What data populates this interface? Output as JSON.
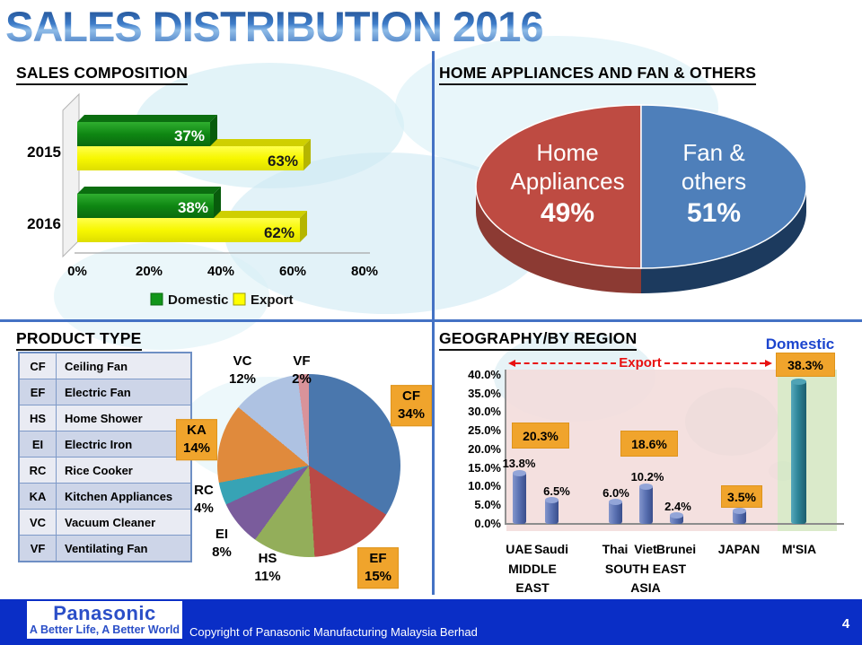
{
  "title": "SALES DISTRIBUTION 2016",
  "page_number": "4",
  "footer": {
    "logo_title": "Panasonic",
    "logo_tagline": "A Better Life, A Better World",
    "copyright": "Copyright of Panasonic Manufacturing Malaysia Berhad"
  },
  "sales_composition": {
    "heading": "SALES COMPOSITION",
    "chart_data": {
      "type": "bar",
      "orientation": "horizontal",
      "categories": [
        "2015",
        "2016"
      ],
      "series": [
        {
          "name": "Domestic",
          "color": "#12961A",
          "values": [
            37,
            38
          ],
          "value_labels": [
            "37%",
            "38%"
          ]
        },
        {
          "name": "Export",
          "color": "#FFFF00",
          "values": [
            63,
            62
          ],
          "value_labels": [
            "63%",
            "62%"
          ]
        }
      ],
      "x_ticks": [
        "0%",
        "20%",
        "40%",
        "60%",
        "80%"
      ],
      "xlim": [
        0,
        80
      ],
      "legend": {
        "domestic": "Domestic",
        "export": "Export"
      }
    }
  },
  "appliances": {
    "heading": "HOME APPLIANCES AND FAN & OTHERS",
    "chart_data": {
      "type": "pie",
      "slices": [
        {
          "label": "Home Appliances",
          "value": 49,
          "pct": "49%",
          "color": "#BE4B42",
          "label_line1": "Home",
          "label_line2": "Appliances"
        },
        {
          "label": "Fan & others",
          "value": 51,
          "pct": "51%",
          "color": "#4E7FBA",
          "label_line1": "Fan &",
          "label_line2": "others"
        }
      ]
    }
  },
  "product_type": {
    "heading": "PRODUCT TYPE",
    "table": {
      "rows": [
        {
          "code": "CF",
          "name": "Ceiling Fan"
        },
        {
          "code": "EF",
          "name": "Electric Fan"
        },
        {
          "code": "HS",
          "name": "Home Shower"
        },
        {
          "code": "EI",
          "name": "Electric Iron"
        },
        {
          "code": "RC",
          "name": "Rice Cooker"
        },
        {
          "code": "KA",
          "name": "Kitchen Appliances"
        },
        {
          "code": "VC",
          "name": "Vacuum Cleaner"
        },
        {
          "code": "VF",
          "name": "Ventilating Fan"
        }
      ]
    },
    "chart_data": {
      "type": "pie",
      "slices": [
        {
          "label": "CF",
          "value": 34,
          "pct": "34%",
          "color": "#4A77AD",
          "highlighted": true
        },
        {
          "label": "EF",
          "value": 15,
          "pct": "15%",
          "color": "#B94A46",
          "highlighted": true
        },
        {
          "label": "HS",
          "value": 11,
          "pct": "11%",
          "color": "#93AE5A",
          "highlighted": false
        },
        {
          "label": "EI",
          "value": 8,
          "pct": "8%",
          "color": "#7A5C9C",
          "highlighted": false
        },
        {
          "label": "RC",
          "value": 4,
          "pct": "4%",
          "color": "#37A3B5",
          "highlighted": false
        },
        {
          "label": "KA",
          "value": 14,
          "pct": "14%",
          "color": "#E08A3C",
          "highlighted": true
        },
        {
          "label": "VC",
          "value": 12,
          "pct": "12%",
          "color": "#AEC2E2",
          "highlighted": false
        },
        {
          "label": "VF",
          "value": 2,
          "pct": "2%",
          "color": "#D9939A",
          "highlighted": false
        }
      ]
    }
  },
  "geography": {
    "heading": "GEOGRAPHY/BY REGION",
    "domestic_label": "Domestic",
    "export_label": "Export",
    "chart_data": {
      "type": "bar",
      "ylim": [
        0,
        40
      ],
      "y_ticks": [
        "40.0%",
        "35.0%",
        "30.0%",
        "25.0%",
        "20.0%",
        "15.0%",
        "10.0%",
        "5.0%",
        "0.0%"
      ],
      "bars": [
        {
          "label": "UAE",
          "value": 13.8,
          "value_label": "13.8%",
          "color": "#5C73B4"
        },
        {
          "label": "Saudi",
          "value": 6.5,
          "value_label": "6.5%",
          "color": "#5C73B4"
        },
        {
          "label": "Thai",
          "value": 6.0,
          "value_label": "6.0%",
          "color": "#5C73B4"
        },
        {
          "label": "Viet",
          "value": 10.2,
          "value_label": "10.2%",
          "color": "#5C73B4"
        },
        {
          "label": "Brunei",
          "value": 2.4,
          "value_label": "2.4%",
          "color": "#5C73B4"
        },
        {
          "label": "JAPAN",
          "value": 3.5,
          "value_label": "3.5%",
          "color": "#5C73B4"
        },
        {
          "label": "M'SIA",
          "value": 38.3,
          "value_label": "38.3%",
          "color": "#2E8598"
        }
      ],
      "group_totals": [
        {
          "group": "MIDDLE EAST",
          "value_label": "20.3%"
        },
        {
          "group": "SOUTH EAST ASIA",
          "value_label": "18.6%"
        },
        {
          "group": "JAPAN",
          "value_label": "3.5%"
        },
        {
          "group": "M'SIA",
          "value_label": "38.3%"
        }
      ],
      "group_labels": [
        {
          "line1": "MIDDLE",
          "line2": "EAST"
        },
        {
          "line1": "SOUTH EAST",
          "line2": "ASIA"
        }
      ]
    }
  },
  "colors": {
    "divider": "#4472C4",
    "highlight_box": "#F0A42C",
    "footer_bar": "#0A2EC6",
    "export_band": "#F3DDDC",
    "domestic_band": "#D7E8C6"
  }
}
